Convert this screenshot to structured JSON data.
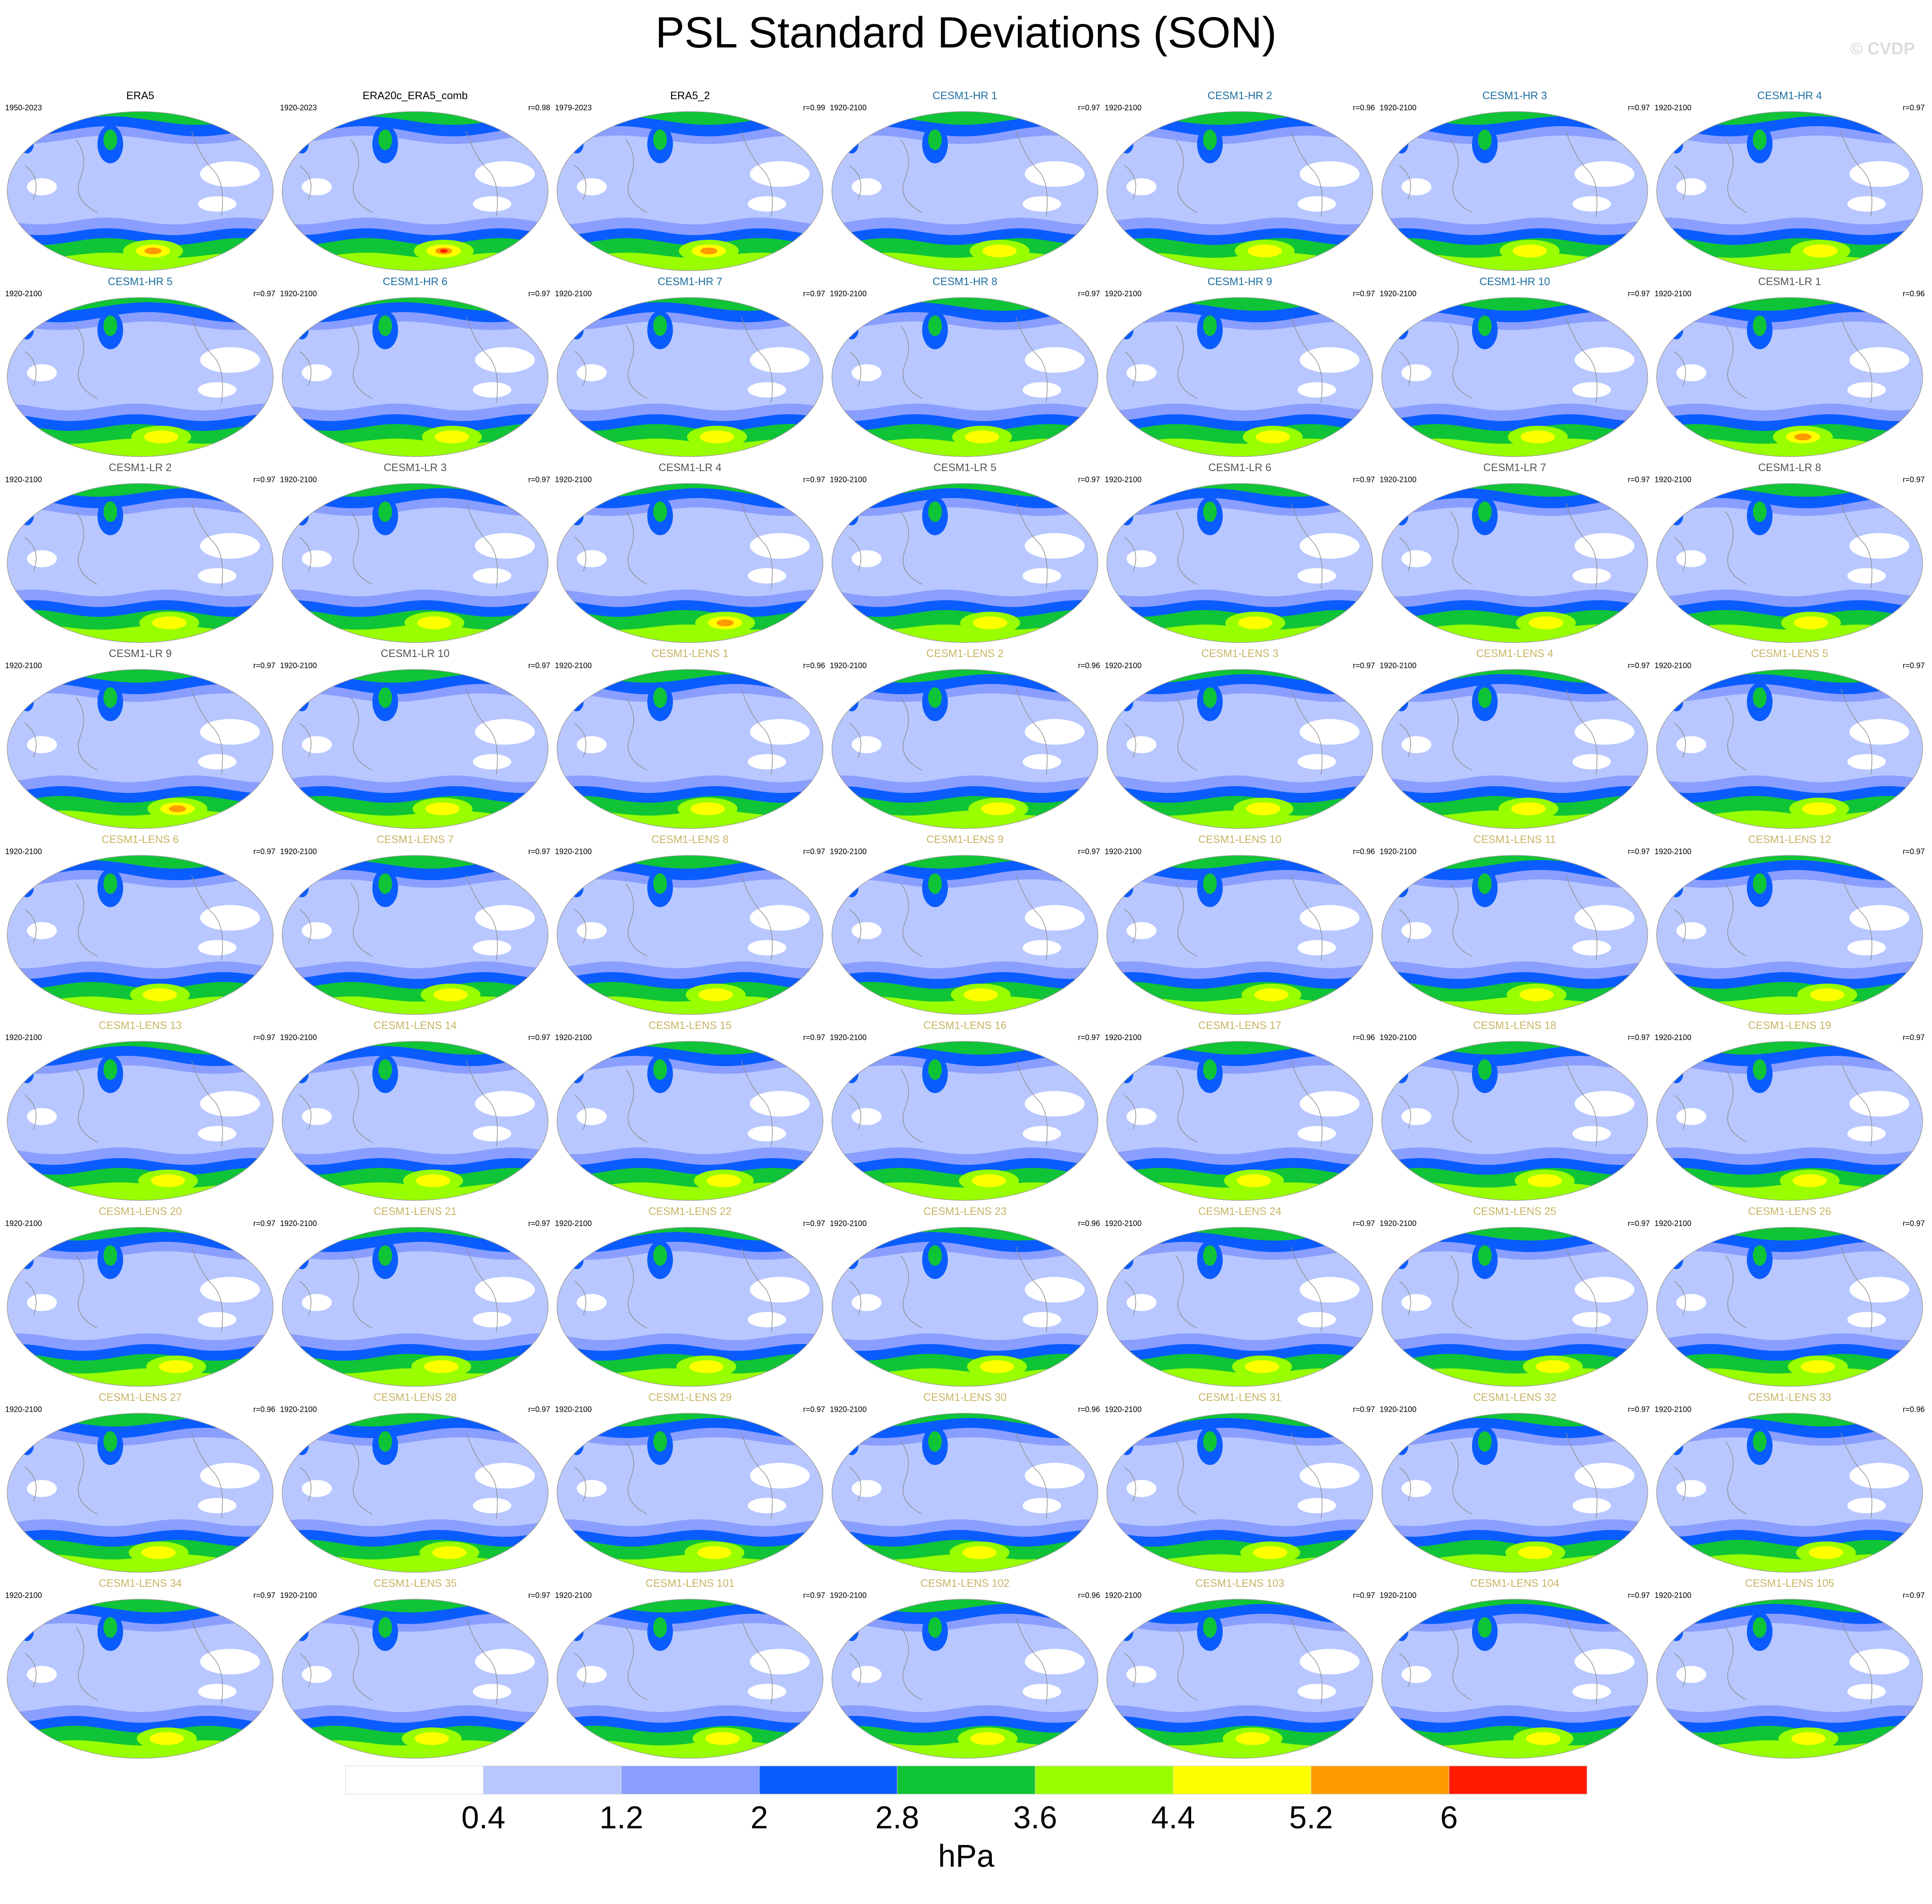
{
  "title": "PSL Standard Deviations (SON)",
  "watermark": "© CVDP",
  "chart_data": {
    "type": "map-panel-grid",
    "title": "PSL Standard Deviations (SON)",
    "projection": "robinson",
    "grid": {
      "rows": 9,
      "cols": 7
    },
    "colorbar": {
      "levels": [
        0.4,
        1.2,
        2,
        2.8,
        3.6,
        4.4,
        5.2,
        6
      ],
      "level_labels": [
        "0.4",
        "1.2",
        "2",
        "2.8",
        "3.6",
        "4.4",
        "5.2",
        "6"
      ],
      "colors": [
        "#ffffff",
        "#b8c7ff",
        "#8a9eff",
        "#0a5cff",
        "#0fc437",
        "#99ff00",
        "#ffff00",
        "#ff9a00",
        "#ff1a00"
      ],
      "units": "hPa",
      "orientation": "horizontal",
      "placement": "bottom"
    },
    "group_colors": {
      "obs": "#000000",
      "hr": "#1e6fa0",
      "lr": "#555555",
      "lens": "#c8b464"
    },
    "panels": [
      {
        "name": "ERA5",
        "years": "1950-2023",
        "corr": "",
        "group": "obs"
      },
      {
        "name": "ERA20c_ERA5_comb",
        "years": "1920-2023",
        "corr": "r=0.98",
        "group": "obs"
      },
      {
        "name": "ERA5_2",
        "years": "1979-2023",
        "corr": "r=0.99",
        "group": "obs"
      },
      {
        "name": "CESM1-HR 1",
        "years": "1920-2100",
        "corr": "r=0.97",
        "group": "hr"
      },
      {
        "name": "CESM1-HR 2",
        "years": "1920-2100",
        "corr": "r=0.96",
        "group": "hr"
      },
      {
        "name": "CESM1-HR 3",
        "years": "1920-2100",
        "corr": "r=0.97",
        "group": "hr"
      },
      {
        "name": "CESM1-HR 4",
        "years": "1920-2100",
        "corr": "r=0.97",
        "group": "hr"
      },
      {
        "name": "CESM1-HR 5",
        "years": "1920-2100",
        "corr": "r=0.97",
        "group": "hr"
      },
      {
        "name": "CESM1-HR 6",
        "years": "1920-2100",
        "corr": "r=0.97",
        "group": "hr"
      },
      {
        "name": "CESM1-HR 7",
        "years": "1920-2100",
        "corr": "r=0.97",
        "group": "hr"
      },
      {
        "name": "CESM1-HR 8",
        "years": "1920-2100",
        "corr": "r=0.97",
        "group": "hr"
      },
      {
        "name": "CESM1-HR 9",
        "years": "1920-2100",
        "corr": "r=0.97",
        "group": "hr"
      },
      {
        "name": "CESM1-HR 10",
        "years": "1920-2100",
        "corr": "r=0.97",
        "group": "hr"
      },
      {
        "name": "CESM1-LR 1",
        "years": "1920-2100",
        "corr": "r=0.96",
        "group": "lr"
      },
      {
        "name": "CESM1-LR 2",
        "years": "1920-2100",
        "corr": "r=0.97",
        "group": "lr"
      },
      {
        "name": "CESM1-LR 3",
        "years": "1920-2100",
        "corr": "r=0.97",
        "group": "lr"
      },
      {
        "name": "CESM1-LR 4",
        "years": "1920-2100",
        "corr": "r=0.97",
        "group": "lr"
      },
      {
        "name": "CESM1-LR 5",
        "years": "1920-2100",
        "corr": "r=0.97",
        "group": "lr"
      },
      {
        "name": "CESM1-LR 6",
        "years": "1920-2100",
        "corr": "r=0.97",
        "group": "lr"
      },
      {
        "name": "CESM1-LR 7",
        "years": "1920-2100",
        "corr": "r=0.97",
        "group": "lr"
      },
      {
        "name": "CESM1-LR 8",
        "years": "1920-2100",
        "corr": "r=0.97",
        "group": "lr"
      },
      {
        "name": "CESM1-LR 9",
        "years": "1920-2100",
        "corr": "r=0.97",
        "group": "lr"
      },
      {
        "name": "CESM1-LR 10",
        "years": "1920-2100",
        "corr": "r=0.97",
        "group": "lr"
      },
      {
        "name": "CESM1-LENS 1",
        "years": "1920-2100",
        "corr": "r=0.96",
        "group": "lens"
      },
      {
        "name": "CESM1-LENS 2",
        "years": "1920-2100",
        "corr": "r=0.96",
        "group": "lens"
      },
      {
        "name": "CESM1-LENS 3",
        "years": "1920-2100",
        "corr": "r=0.97",
        "group": "lens"
      },
      {
        "name": "CESM1-LENS 4",
        "years": "1920-2100",
        "corr": "r=0.97",
        "group": "lens"
      },
      {
        "name": "CESM1-LENS 5",
        "years": "1920-2100",
        "corr": "r=0.97",
        "group": "lens"
      },
      {
        "name": "CESM1-LENS 6",
        "years": "1920-2100",
        "corr": "r=0.97",
        "group": "lens"
      },
      {
        "name": "CESM1-LENS 7",
        "years": "1920-2100",
        "corr": "r=0.97",
        "group": "lens"
      },
      {
        "name": "CESM1-LENS 8",
        "years": "1920-2100",
        "corr": "r=0.97",
        "group": "lens"
      },
      {
        "name": "CESM1-LENS 9",
        "years": "1920-2100",
        "corr": "r=0.97",
        "group": "lens"
      },
      {
        "name": "CESM1-LENS 10",
        "years": "1920-2100",
        "corr": "r=0.96",
        "group": "lens"
      },
      {
        "name": "CESM1-LENS 11",
        "years": "1920-2100",
        "corr": "r=0.97",
        "group": "lens"
      },
      {
        "name": "CESM1-LENS 12",
        "years": "1920-2100",
        "corr": "r=0.97",
        "group": "lens"
      },
      {
        "name": "CESM1-LENS 13",
        "years": "1920-2100",
        "corr": "r=0.97",
        "group": "lens"
      },
      {
        "name": "CESM1-LENS 14",
        "years": "1920-2100",
        "corr": "r=0.97",
        "group": "lens"
      },
      {
        "name": "CESM1-LENS 15",
        "years": "1920-2100",
        "corr": "r=0.97",
        "group": "lens"
      },
      {
        "name": "CESM1-LENS 16",
        "years": "1920-2100",
        "corr": "r=0.97",
        "group": "lens"
      },
      {
        "name": "CESM1-LENS 17",
        "years": "1920-2100",
        "corr": "r=0.96",
        "group": "lens"
      },
      {
        "name": "CESM1-LENS 18",
        "years": "1920-2100",
        "corr": "r=0.97",
        "group": "lens"
      },
      {
        "name": "CESM1-LENS 19",
        "years": "1920-2100",
        "corr": "r=0.97",
        "group": "lens"
      },
      {
        "name": "CESM1-LENS 20",
        "years": "1920-2100",
        "corr": "r=0.97",
        "group": "lens"
      },
      {
        "name": "CESM1-LENS 21",
        "years": "1920-2100",
        "corr": "r=0.97",
        "group": "lens"
      },
      {
        "name": "CESM1-LENS 22",
        "years": "1920-2100",
        "corr": "r=0.97",
        "group": "lens"
      },
      {
        "name": "CESM1-LENS 23",
        "years": "1920-2100",
        "corr": "r=0.96",
        "group": "lens"
      },
      {
        "name": "CESM1-LENS 24",
        "years": "1920-2100",
        "corr": "r=0.97",
        "group": "lens"
      },
      {
        "name": "CESM1-LENS 25",
        "years": "1920-2100",
        "corr": "r=0.97",
        "group": "lens"
      },
      {
        "name": "CESM1-LENS 26",
        "years": "1920-2100",
        "corr": "r=0.97",
        "group": "lens"
      },
      {
        "name": "CESM1-LENS 27",
        "years": "1920-2100",
        "corr": "r=0.96",
        "group": "lens"
      },
      {
        "name": "CESM1-LENS 28",
        "years": "1920-2100",
        "corr": "r=0.97",
        "group": "lens"
      },
      {
        "name": "CESM1-LENS 29",
        "years": "1920-2100",
        "corr": "r=0.97",
        "group": "lens"
      },
      {
        "name": "CESM1-LENS 30",
        "years": "1920-2100",
        "corr": "r=0.96",
        "group": "lens"
      },
      {
        "name": "CESM1-LENS 31",
        "years": "1920-2100",
        "corr": "r=0.97",
        "group": "lens"
      },
      {
        "name": "CESM1-LENS 32",
        "years": "1920-2100",
        "corr": "r=0.97",
        "group": "lens"
      },
      {
        "name": "CESM1-LENS 33",
        "years": "1920-2100",
        "corr": "r=0.96",
        "group": "lens"
      },
      {
        "name": "CESM1-LENS 34",
        "years": "1920-2100",
        "corr": "r=0.97",
        "group": "lens"
      },
      {
        "name": "CESM1-LENS 35",
        "years": "1920-2100",
        "corr": "r=0.97",
        "group": "lens"
      },
      {
        "name": "CESM1-LENS 101",
        "years": "1920-2100",
        "corr": "r=0.97",
        "group": "lens"
      },
      {
        "name": "CESM1-LENS 102",
        "years": "1920-2100",
        "corr": "r=0.96",
        "group": "lens"
      },
      {
        "name": "CESM1-LENS 103",
        "years": "1920-2100",
        "corr": "r=0.97",
        "group": "lens"
      },
      {
        "name": "CESM1-LENS 104",
        "years": "1920-2100",
        "corr": "r=0.97",
        "group": "lens"
      },
      {
        "name": "CESM1-LENS 105",
        "years": "1920-2100",
        "corr": "r=0.97",
        "group": "lens"
      }
    ]
  }
}
